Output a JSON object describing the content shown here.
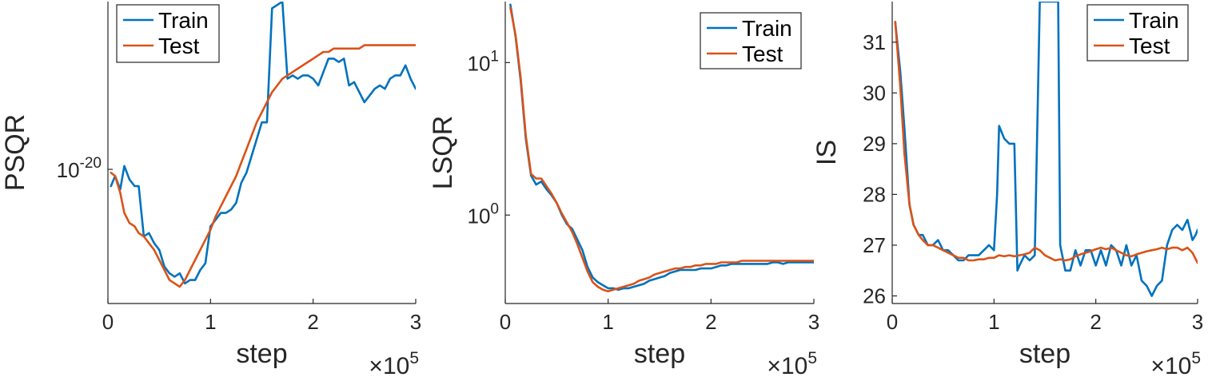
{
  "colors": {
    "train": "#0072BD",
    "test": "#D95319",
    "axis": "#262626"
  },
  "chart_data": [
    {
      "type": "line",
      "ylabel": "PSQR",
      "xlabel": "step",
      "x_multiplier": "×10",
      "x_multiplier_exp": "5",
      "xlim": [
        0,
        3
      ],
      "xticks": [
        "0",
        "1",
        "2",
        "3"
      ],
      "yscale": "log",
      "ytick_labels": [
        {
          "value": -20,
          "base": "10",
          "exp": "-20"
        }
      ],
      "ylim": [
        -20.4,
        -19.5
      ],
      "legend": {
        "position": "top-left",
        "entries": [
          "Train",
          "Test"
        ]
      },
      "series": [
        {
          "name": "Train",
          "x": [
            0.03,
            0.07,
            0.12,
            0.16,
            0.21,
            0.26,
            0.3,
            0.35,
            0.4,
            0.45,
            0.5,
            0.55,
            0.6,
            0.65,
            0.7,
            0.75,
            0.8,
            0.85,
            0.9,
            0.95,
            1,
            1.05,
            1.1,
            1.15,
            1.2,
            1.25,
            1.3,
            1.35,
            1.4,
            1.45,
            1.5,
            1.55,
            1.6,
            1.65,
            1.7,
            1.75,
            1.8,
            1.85,
            1.9,
            1.95,
            2,
            2.05,
            2.1,
            2.15,
            2.2,
            2.25,
            2.3,
            2.35,
            2.4,
            2.45,
            2.5,
            2.55,
            2.6,
            2.65,
            2.7,
            2.75,
            2.8,
            2.85,
            2.9,
            2.95,
            3
          ],
          "values": [
            -20.05,
            -20.02,
            -20.06,
            -19.99,
            -20.03,
            -20.05,
            -20.05,
            -20.2,
            -20.19,
            -20.22,
            -20.24,
            -20.29,
            -20.31,
            -20.32,
            -20.31,
            -20.34,
            -20.33,
            -20.33,
            -20.3,
            -20.28,
            -20.17,
            -20.15,
            -20.13,
            -20.13,
            -20.12,
            -20.1,
            -20.04,
            -20.01,
            -19.96,
            -19.91,
            -19.86,
            -19.86,
            -19.52,
            -19.51,
            -19.5,
            -19.73,
            -19.72,
            -19.73,
            -19.72,
            -19.72,
            -19.73,
            -19.75,
            -19.71,
            -19.67,
            -19.67,
            -19.68,
            -19.67,
            -19.75,
            -19.74,
            -19.77,
            -19.8,
            -19.78,
            -19.76,
            -19.75,
            -19.76,
            -19.73,
            -19.72,
            -19.72,
            -19.69,
            -19.73,
            -19.76
          ]
        },
        {
          "name": "Test",
          "x": [
            0.03,
            0.07,
            0.12,
            0.16,
            0.21,
            0.26,
            0.3,
            0.35,
            0.4,
            0.45,
            0.5,
            0.55,
            0.6,
            0.65,
            0.7,
            0.75,
            0.8,
            0.85,
            0.9,
            0.95,
            1,
            1.05,
            1.1,
            1.15,
            1.2,
            1.25,
            1.3,
            1.35,
            1.4,
            1.45,
            1.5,
            1.55,
            1.6,
            1.65,
            1.7,
            1.75,
            1.8,
            1.85,
            1.9,
            1.95,
            2,
            2.05,
            2.1,
            2.15,
            2.2,
            2.25,
            2.3,
            2.35,
            2.4,
            2.45,
            2.5,
            2.55,
            2.6,
            2.65,
            2.7,
            2.75,
            2.8,
            2.85,
            2.9,
            2.95,
            3
          ],
          "values": [
            -20.01,
            -20.02,
            -20.07,
            -20.13,
            -20.16,
            -20.17,
            -20.19,
            -20.2,
            -20.22,
            -20.24,
            -20.27,
            -20.3,
            -20.33,
            -20.34,
            -20.35,
            -20.33,
            -20.3,
            -20.27,
            -20.24,
            -20.21,
            -20.18,
            -20.14,
            -20.11,
            -20.08,
            -20.05,
            -20.02,
            -19.98,
            -19.94,
            -19.9,
            -19.86,
            -19.83,
            -19.8,
            -19.77,
            -19.75,
            -19.73,
            -19.72,
            -19.71,
            -19.7,
            -19.69,
            -19.68,
            -19.67,
            -19.66,
            -19.65,
            -19.65,
            -19.64,
            -19.64,
            -19.64,
            -19.64,
            -19.64,
            -19.64,
            -19.63,
            -19.63,
            -19.63,
            -19.63,
            -19.63,
            -19.63,
            -19.63,
            -19.63,
            -19.63,
            -19.63,
            -19.63
          ]
        }
      ]
    },
    {
      "type": "line",
      "ylabel": "LSQR",
      "xlabel": "step",
      "x_multiplier": "×10",
      "x_multiplier_exp": "5",
      "xlim": [
        0,
        3
      ],
      "xticks": [
        "0",
        "1",
        "2",
        "3"
      ],
      "yscale": "log",
      "ytick_labels": [
        {
          "value": 0,
          "base": "10",
          "exp": "0"
        },
        {
          "value": 1,
          "base": "10",
          "exp": "1"
        }
      ],
      "ylim": [
        -0.58,
        1.4
      ],
      "legend": {
        "position": "top-right",
        "entries": [
          "Train",
          "Test"
        ]
      },
      "series": [
        {
          "name": "Train",
          "x": [
            0.05,
            0.1,
            0.15,
            0.2,
            0.25,
            0.3,
            0.35,
            0.4,
            0.45,
            0.5,
            0.55,
            0.6,
            0.65,
            0.7,
            0.75,
            0.8,
            0.85,
            0.9,
            0.95,
            1,
            1.05,
            1.1,
            1.15,
            1.2,
            1.25,
            1.3,
            1.35,
            1.4,
            1.45,
            1.5,
            1.55,
            1.6,
            1.65,
            1.7,
            1.75,
            1.8,
            1.85,
            1.9,
            1.95,
            2,
            2.05,
            2.1,
            2.15,
            2.2,
            2.25,
            2.3,
            2.35,
            2.4,
            2.45,
            2.5,
            2.55,
            2.6,
            2.65,
            2.7,
            2.75,
            2.8,
            2.85,
            2.9,
            2.95,
            3
          ],
          "values": [
            1.38,
            1.17,
            0.88,
            0.5,
            0.26,
            0.2,
            0.22,
            0.17,
            0.13,
            0.08,
            0.0,
            -0.06,
            -0.09,
            -0.16,
            -0.23,
            -0.34,
            -0.41,
            -0.44,
            -0.46,
            -0.48,
            -0.48,
            -0.49,
            -0.48,
            -0.48,
            -0.47,
            -0.46,
            -0.45,
            -0.43,
            -0.42,
            -0.41,
            -0.4,
            -0.38,
            -0.37,
            -0.36,
            -0.36,
            -0.36,
            -0.36,
            -0.35,
            -0.35,
            -0.35,
            -0.34,
            -0.33,
            -0.33,
            -0.32,
            -0.32,
            -0.32,
            -0.32,
            -0.32,
            -0.32,
            -0.32,
            -0.32,
            -0.31,
            -0.31,
            -0.32,
            -0.31,
            -0.31,
            -0.31,
            -0.31,
            -0.31,
            -0.31
          ]
        },
        {
          "name": "Test",
          "x": [
            0.05,
            0.1,
            0.15,
            0.2,
            0.25,
            0.3,
            0.35,
            0.4,
            0.45,
            0.5,
            0.55,
            0.6,
            0.65,
            0.7,
            0.75,
            0.8,
            0.85,
            0.9,
            0.95,
            1,
            1.05,
            1.1,
            1.15,
            1.2,
            1.25,
            1.3,
            1.35,
            1.4,
            1.45,
            1.5,
            1.55,
            1.6,
            1.65,
            1.7,
            1.75,
            1.8,
            1.85,
            1.9,
            1.95,
            2,
            2.05,
            2.1,
            2.15,
            2.2,
            2.25,
            2.3,
            2.35,
            2.4,
            2.45,
            2.5,
            2.55,
            2.6,
            2.65,
            2.7,
            2.75,
            2.8,
            2.85,
            2.9,
            2.95,
            3
          ],
          "values": [
            1.36,
            1.18,
            0.9,
            0.52,
            0.27,
            0.24,
            0.24,
            0.19,
            0.14,
            0.08,
            0.01,
            -0.05,
            -0.11,
            -0.19,
            -0.28,
            -0.37,
            -0.44,
            -0.47,
            -0.49,
            -0.5,
            -0.49,
            -0.48,
            -0.47,
            -0.46,
            -0.45,
            -0.43,
            -0.42,
            -0.41,
            -0.39,
            -0.38,
            -0.37,
            -0.36,
            -0.35,
            -0.35,
            -0.34,
            -0.34,
            -0.33,
            -0.33,
            -0.32,
            -0.32,
            -0.32,
            -0.31,
            -0.31,
            -0.31,
            -0.31,
            -0.3,
            -0.3,
            -0.3,
            -0.3,
            -0.3,
            -0.3,
            -0.3,
            -0.3,
            -0.3,
            -0.3,
            -0.3,
            -0.3,
            -0.3,
            -0.3,
            -0.3
          ]
        }
      ]
    },
    {
      "type": "line",
      "ylabel": "IS",
      "xlabel": "step",
      "x_multiplier": "×10",
      "x_multiplier_exp": "5",
      "xlim": [
        0,
        3
      ],
      "xticks": [
        "0",
        "1",
        "2",
        "3"
      ],
      "yscale": "linear",
      "ytick_labels": [
        {
          "value": 26,
          "label": "26"
        },
        {
          "value": 27,
          "label": "27"
        },
        {
          "value": 28,
          "label": "28"
        },
        {
          "value": 29,
          "label": "29"
        },
        {
          "value": 30,
          "label": "30"
        },
        {
          "value": 31,
          "label": "31"
        }
      ],
      "ylim": [
        25.85,
        31.8
      ],
      "legend": {
        "position": "top-right",
        "entries": [
          "Train",
          "Test"
        ]
      },
      "series": [
        {
          "name": "Train",
          "x": [
            0.03,
            0.08,
            0.12,
            0.17,
            0.21,
            0.26,
            0.3,
            0.35,
            0.4,
            0.45,
            0.5,
            0.55,
            0.6,
            0.65,
            0.7,
            0.75,
            0.8,
            0.85,
            0.9,
            0.95,
            1,
            1.03,
            1.05,
            1.1,
            1.15,
            1.2,
            1.23,
            1.25,
            1.3,
            1.35,
            1.4,
            1.45,
            1.48,
            1.5,
            1.55,
            1.6,
            1.63,
            1.65,
            1.7,
            1.75,
            1.8,
            1.85,
            1.9,
            1.95,
            2,
            2.05,
            2.1,
            2.15,
            2.2,
            2.25,
            2.3,
            2.35,
            2.4,
            2.45,
            2.5,
            2.55,
            2.6,
            2.65,
            2.7,
            2.75,
            2.8,
            2.85,
            2.9,
            2.95,
            2.98,
            3
          ],
          "values": [
            31.4,
            30.4,
            29.3,
            27.8,
            27.4,
            27.2,
            27.2,
            27.0,
            27.0,
            27.1,
            26.9,
            26.9,
            26.8,
            26.7,
            26.7,
            26.8,
            26.8,
            26.8,
            26.9,
            27.0,
            26.9,
            28.0,
            29.35,
            29.1,
            29.0,
            29.0,
            26.5,
            26.6,
            26.8,
            26.7,
            26.8,
            31.8,
            31.8,
            31.8,
            31.8,
            31.8,
            31.8,
            27.0,
            26.5,
            26.5,
            26.9,
            26.6,
            26.9,
            26.9,
            26.6,
            26.9,
            26.6,
            27.0,
            26.9,
            26.6,
            27.0,
            26.6,
            26.8,
            26.3,
            26.2,
            26.0,
            26.2,
            26.3,
            27.0,
            27.3,
            27.4,
            27.3,
            27.5,
            27.1,
            27.2,
            27.3
          ]
        },
        {
          "name": "Test",
          "x": [
            0.03,
            0.08,
            0.12,
            0.17,
            0.21,
            0.26,
            0.3,
            0.35,
            0.4,
            0.45,
            0.5,
            0.55,
            0.6,
            0.65,
            0.7,
            0.75,
            0.8,
            0.85,
            0.9,
            0.95,
            1,
            1.05,
            1.1,
            1.15,
            1.2,
            1.25,
            1.3,
            1.35,
            1.4,
            1.45,
            1.5,
            1.55,
            1.6,
            1.65,
            1.7,
            1.75,
            1.8,
            1.85,
            1.9,
            1.95,
            2,
            2.05,
            2.1,
            2.15,
            2.2,
            2.25,
            2.3,
            2.35,
            2.4,
            2.45,
            2.5,
            2.55,
            2.6,
            2.65,
            2.7,
            2.75,
            2.8,
            2.85,
            2.9,
            2.95,
            3
          ],
          "values": [
            31.4,
            30.1,
            28.8,
            27.8,
            27.4,
            27.2,
            27.1,
            27.0,
            27.0,
            26.95,
            26.9,
            26.85,
            26.8,
            26.75,
            26.75,
            26.7,
            26.7,
            26.72,
            26.72,
            26.75,
            26.75,
            26.8,
            26.78,
            26.8,
            26.78,
            26.8,
            26.82,
            26.85,
            26.95,
            26.9,
            26.8,
            26.75,
            26.7,
            26.72,
            26.7,
            26.72,
            26.78,
            26.82,
            26.85,
            26.88,
            26.92,
            26.95,
            26.92,
            26.95,
            26.9,
            26.85,
            26.8,
            26.78,
            26.82,
            26.85,
            26.88,
            26.9,
            26.92,
            26.95,
            26.92,
            26.95,
            26.95,
            26.9,
            26.95,
            26.85,
            26.65
          ]
        }
      ]
    }
  ]
}
